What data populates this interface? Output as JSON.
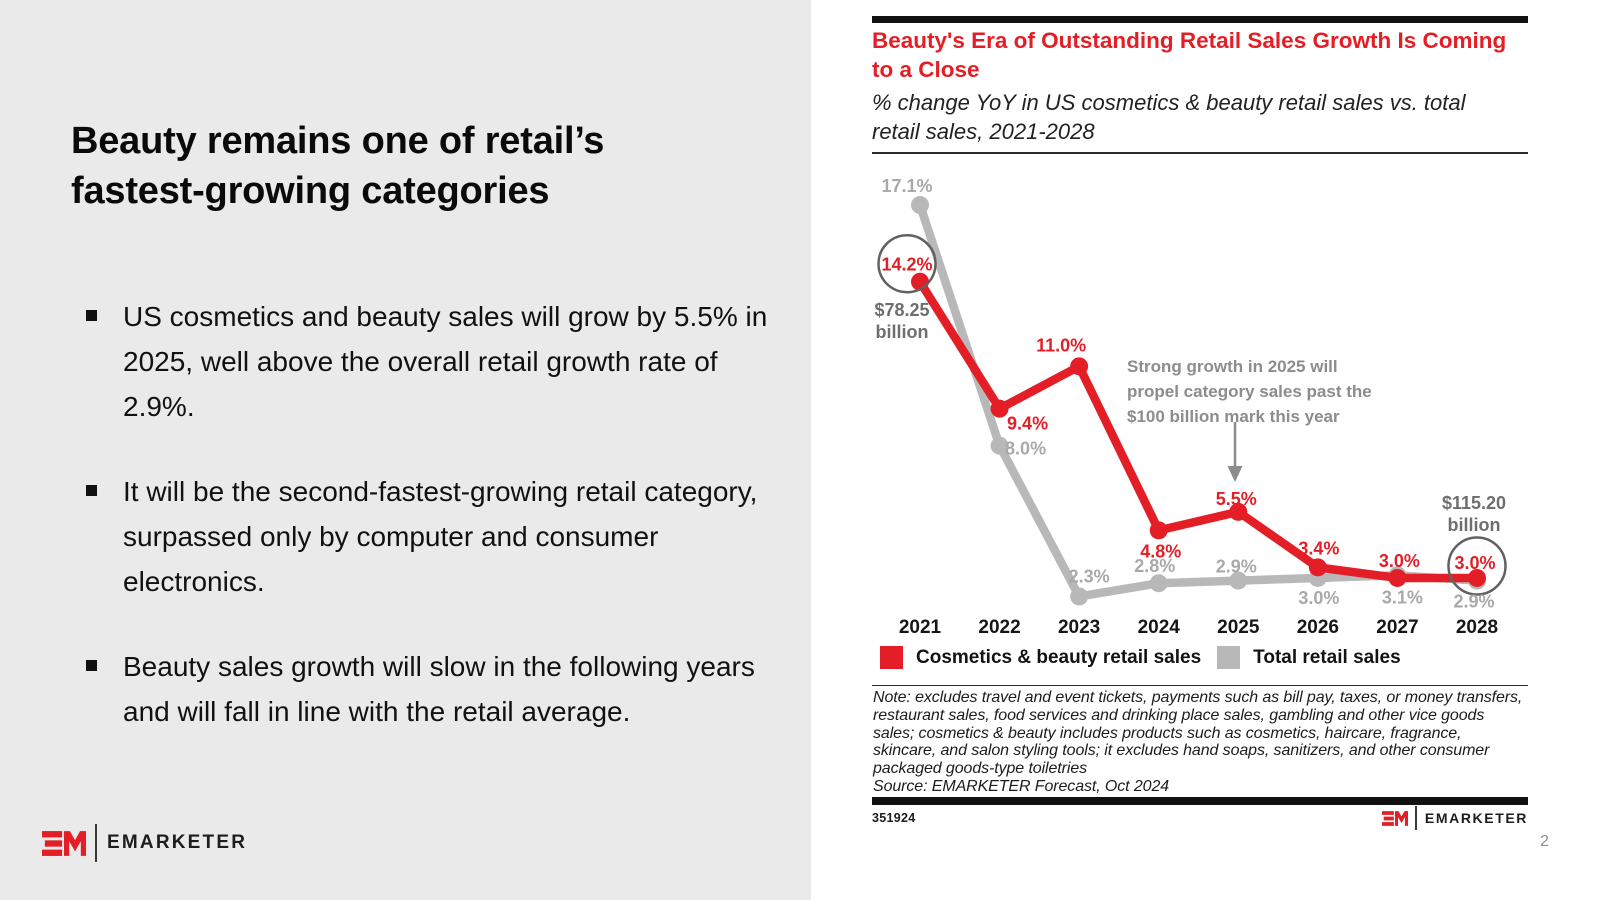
{
  "slide": {
    "page_number": "2",
    "chart_id": "351924",
    "accent_red": "#e31e26",
    "left_background": "#eaeaea"
  },
  "left_panel": {
    "title": "Beauty remains one of retail’s fastest-growing categories",
    "bullets": [
      "US cosmetics and beauty sales will grow by 5.5% in 2025, well above the overall retail growth rate of 2.9%.",
      "It will be the second-fastest-growing retail category, surpassed only by computer and consumer electronics.",
      "Beauty sales growth will slow in the following years and will fall in line with the retail average."
    ],
    "logo_wordmark": "EMARKETER"
  },
  "chart": {
    "title": "Beauty's Era of Outstanding Retail Sales Growth Is Coming to a Close",
    "subtitle": "% change YoY in US cosmetics & beauty retail sales vs. total retail sales, 2021-2028",
    "note": "Note: excludes travel and event tickets, payments such as bill pay, taxes, or money transfers, restaurant sales, food services and drinking place sales, gambling and other vice goods sales; cosmetics & beauty includes products such as cosmetics, haircare, fragrance, skincare, and salon styling tools; it excludes hand soaps, sanitizers, and other consumer packaged goods-type toiletries",
    "source": "Source: EMARKETER Forecast, Oct 2024",
    "footer_wordmark": "EMARKETER"
  },
  "chart_data": {
    "type": "line",
    "categories": [
      "2021",
      "2022",
      "2023",
      "2024",
      "2025",
      "2026",
      "2027",
      "2028"
    ],
    "series": [
      {
        "name": "Cosmetics & beauty retail sales",
        "color": "#e31e26",
        "values": [
          14.2,
          9.4,
          11.0,
          4.8,
          5.5,
          3.4,
          3.0,
          3.0
        ],
        "labels": [
          "14.2%",
          "9.4%",
          "11.0%",
          "4.8%",
          "5.5%",
          "3.4%",
          "3.0%",
          "3.0%"
        ]
      },
      {
        "name": "Total retail sales",
        "color": "#b8b8b8",
        "values": [
          17.1,
          8.0,
          2.3,
          2.8,
          2.9,
          3.0,
          3.1,
          2.9
        ],
        "labels": [
          "17.1%",
          "8.0%",
          "2.3%",
          "2.8%",
          "2.9%",
          "3.0%",
          "3.1%",
          "2.9%"
        ]
      }
    ],
    "annotations": {
      "start_value_lines": [
        "$78.25",
        "billion"
      ],
      "end_value_lines": [
        "$115.20",
        "billion"
      ],
      "callout_lines": [
        "Strong growth in 2025 will",
        "propel category sales past the",
        "$100 billion mark this year"
      ],
      "circled_point_indices": [
        0,
        7
      ]
    },
    "ylim": [
      0,
      18
    ],
    "grid": false,
    "legend_position": "bottom"
  }
}
